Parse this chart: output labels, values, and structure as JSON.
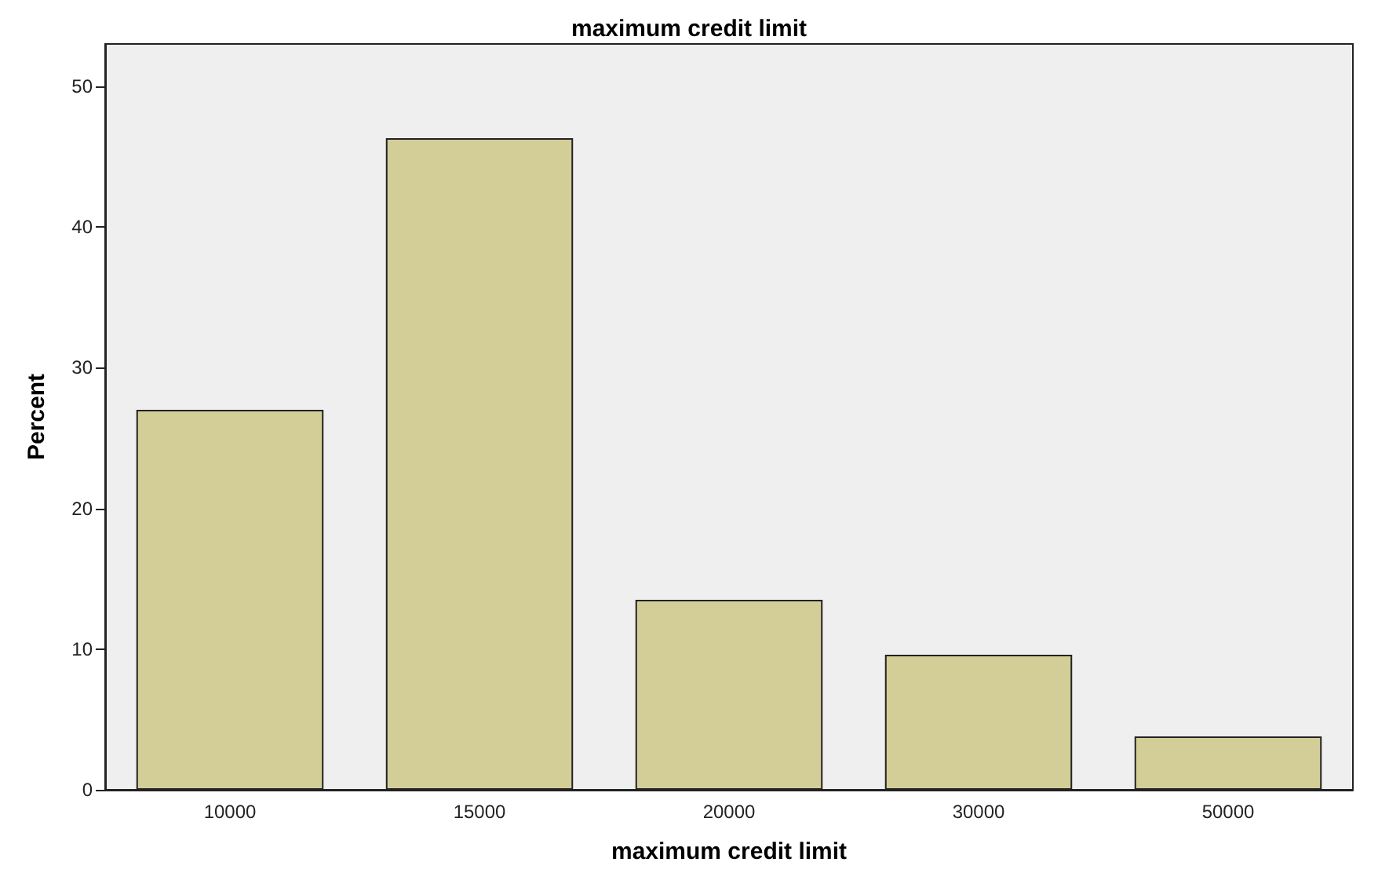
{
  "chart_data": {
    "type": "bar",
    "title": "maximum credit limit",
    "xlabel": "maximum credit limit",
    "ylabel": "Percent",
    "categories": [
      "10000",
      "15000",
      "20000",
      "30000",
      "50000"
    ],
    "values": [
      27.0,
      46.3,
      13.5,
      9.6,
      3.8
    ],
    "color": "#d3ce97",
    "ylim": [
      0,
      53
    ],
    "yticks": [
      0,
      10,
      20,
      30,
      40,
      50
    ],
    "grid": false
  }
}
